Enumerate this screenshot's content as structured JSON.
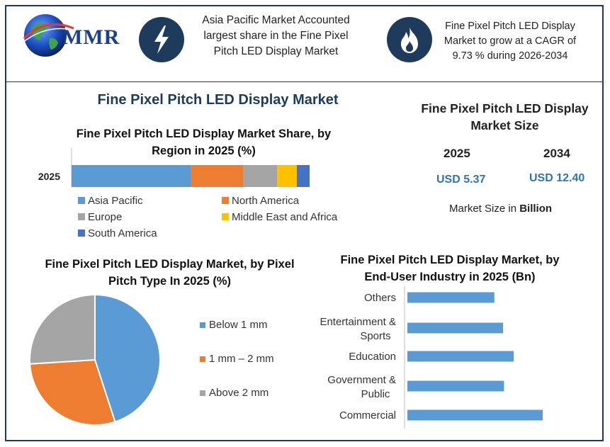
{
  "header": {
    "logo_text": "MMR",
    "box1_text": "Asia Pacific Market Accounted largest share in the Fine Pixel Pitch LED Display Market",
    "box2_text": "Fine Pixel Pitch LED Display Market to grow at a CAGR of 9.73 % during 2026-2034",
    "icon1": "lightning-icon",
    "icon2": "flame-icon"
  },
  "main_title": "Fine Pixel Pitch LED Display Market",
  "market_size": {
    "title": "Fine Pixel Pitch LED Display Market Size",
    "year1": "2025",
    "year2": "2034",
    "value1": "USD 5.37",
    "value2": "USD 12.40",
    "caption_prefix": "Market Size in ",
    "caption_bold": "Billion"
  },
  "chart_data": [
    {
      "type": "bar",
      "orientation": "horizontal-stacked",
      "title": "Fine Pixel Pitch LED Display Market Share, by Region in 2025 (%)",
      "categories": [
        "2025"
      ],
      "series": [
        {
          "name": "Asia Pacific",
          "values": [
            42
          ],
          "color": "#5b9bd5"
        },
        {
          "name": "North America",
          "values": [
            18.5
          ],
          "color": "#ed7d31"
        },
        {
          "name": "Europe",
          "values": [
            12
          ],
          "color": "#a5a5a5"
        },
        {
          "name": "Middle East and Africa",
          "values": [
            7
          ],
          "color": "#ffc000"
        },
        {
          "name": "South America",
          "values": [
            4.5
          ],
          "color": "#4472c4"
        }
      ],
      "legend": "bottom"
    },
    {
      "type": "pie",
      "title": "Fine Pixel Pitch LED Display Market, by Pixel Pitch Type In 2025 (%)",
      "labels": [
        "Below 1 mm",
        "1 mm – 2 mm",
        "Above 2 mm"
      ],
      "values": [
        45,
        29,
        26
      ],
      "colors": [
        "#5b9bd5",
        "#ed7d31",
        "#a5a5a5"
      ],
      "legend": "right"
    },
    {
      "type": "bar",
      "orientation": "horizontal",
      "title": "Fine Pixel Pitch LED Display Market, by End-User Industry in 2025 (Bn)",
      "categories": [
        "Others",
        "Entertainment & Sports",
        "Education",
        "Government & Public",
        "Commercial"
      ],
      "values": [
        0.9,
        0.99,
        1.1,
        1.0,
        1.4
      ],
      "color": "#5b9bd5"
    }
  ]
}
